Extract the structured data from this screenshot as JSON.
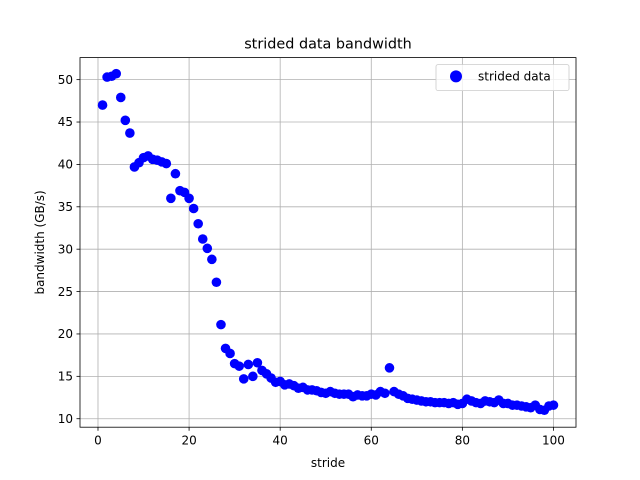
{
  "chart_data": {
    "type": "scatter",
    "title": "strided data bandwidth",
    "xlabel": "stride",
    "ylabel": "bandwidth (GB/s)",
    "xlim": [
      -3.95,
      104.95
    ],
    "ylim": [
      9.0,
      52.6
    ],
    "xticks": [
      0,
      20,
      40,
      60,
      80,
      100
    ],
    "yticks": [
      10,
      15,
      20,
      25,
      30,
      35,
      40,
      45,
      50
    ],
    "grid": true,
    "legend": {
      "position": "top-right",
      "entries": [
        "strided data"
      ]
    },
    "series": [
      {
        "name": "strided data",
        "color": "#0000ff",
        "x": [
          1,
          2,
          3,
          4,
          5,
          6,
          7,
          8,
          9,
          10,
          11,
          12,
          13,
          14,
          15,
          16,
          17,
          18,
          19,
          20,
          21,
          22,
          23,
          24,
          25,
          26,
          27,
          28,
          29,
          30,
          31,
          32,
          33,
          34,
          35,
          36,
          37,
          38,
          39,
          40,
          41,
          42,
          43,
          44,
          45,
          46,
          47,
          48,
          49,
          50,
          51,
          52,
          53,
          54,
          55,
          56,
          57,
          58,
          59,
          60,
          61,
          62,
          63,
          64,
          65,
          66,
          67,
          68,
          69,
          70,
          71,
          72,
          73,
          74,
          75,
          76,
          77,
          78,
          79,
          80,
          81,
          82,
          83,
          84,
          85,
          86,
          87,
          88,
          89,
          90,
          91,
          92,
          93,
          94,
          95,
          96,
          97,
          98,
          99,
          100
        ],
        "y": [
          47.0,
          50.3,
          50.4,
          50.7,
          47.9,
          45.2,
          43.7,
          39.7,
          40.2,
          40.8,
          41.0,
          40.6,
          40.5,
          40.3,
          40.1,
          36.0,
          38.9,
          36.9,
          36.7,
          36.0,
          34.8,
          33.0,
          31.2,
          30.1,
          28.8,
          26.1,
          21.1,
          18.3,
          17.7,
          16.5,
          16.2,
          14.7,
          16.4,
          15.0,
          16.6,
          15.7,
          15.3,
          14.8,
          14.3,
          14.4,
          14.0,
          14.1,
          13.9,
          13.6,
          13.7,
          13.4,
          13.4,
          13.3,
          13.1,
          13.0,
          13.2,
          13.0,
          12.9,
          12.9,
          12.9,
          12.6,
          12.8,
          12.7,
          12.7,
          12.9,
          12.8,
          13.2,
          13.0,
          16.0,
          13.2,
          12.9,
          12.7,
          12.4,
          12.3,
          12.2,
          12.1,
          12.0,
          12.0,
          11.9,
          11.9,
          11.9,
          11.8,
          11.9,
          11.7,
          11.8,
          12.3,
          12.1,
          11.9,
          11.8,
          12.1,
          12.0,
          11.9,
          12.2,
          11.8,
          11.8,
          11.6,
          11.6,
          11.5,
          11.4,
          11.3,
          11.6,
          11.1,
          11.0,
          11.5,
          11.6
        ]
      }
    ]
  }
}
